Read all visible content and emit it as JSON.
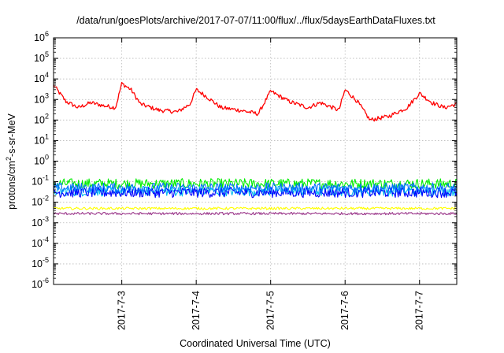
{
  "chart_data": {
    "type": "line",
    "title": "/data/run/goesPlots/archive/2017-07-07/11:00/flux/../flux/5daysEarthDataFluxes.txt",
    "xlabel": "Coordinated Universal Time (UTC)",
    "ylabel": "protons/cm²-s-sr-MeV",
    "ylabel_parts": {
      "base": "protons/cm",
      "sup": "2",
      "rest": "-s-sr-MeV"
    },
    "y_scale": "log",
    "ylim": [
      1e-06,
      1000000.0
    ],
    "y_ticks": [
      {
        "exp": -6,
        "base": "10",
        "sup": "-6"
      },
      {
        "exp": -5,
        "base": "10",
        "sup": "-5"
      },
      {
        "exp": -4,
        "base": "10",
        "sup": "-4"
      },
      {
        "exp": -3,
        "base": "10",
        "sup": "-3"
      },
      {
        "exp": -2,
        "base": "10",
        "sup": "-2"
      },
      {
        "exp": -1,
        "base": "10",
        "sup": "-1"
      },
      {
        "exp": 0,
        "base": "10",
        "sup": "0"
      },
      {
        "exp": 1,
        "base": "10",
        "sup": "1"
      },
      {
        "exp": 2,
        "base": "10",
        "sup": "2"
      },
      {
        "exp": 3,
        "base": "10",
        "sup": "3"
      },
      {
        "exp": 4,
        "base": "10",
        "sup": "4"
      },
      {
        "exp": 5,
        "base": "10",
        "sup": "5"
      },
      {
        "exp": 6,
        "base": "10",
        "sup": "6"
      }
    ],
    "x_start": "2017-07-02 02:00",
    "x_end": "2017-07-07 12:00",
    "x_ticks": [
      {
        "label": "2017-7-3",
        "date": "2017-07-03 00:00"
      },
      {
        "label": "2017-7-4",
        "date": "2017-07-04 00:00"
      },
      {
        "label": "2017-7-5",
        "date": "2017-07-05 00:00"
      },
      {
        "label": "2017-7-6",
        "date": "2017-07-06 00:00"
      },
      {
        "label": "2017-7-7",
        "date": "2017-07-07 00:00"
      }
    ],
    "grid": true,
    "series": [
      {
        "color": "#ff0000",
        "noise": 0.1,
        "points": [
          [
            "2017-07-02 02:00",
            5000
          ],
          [
            "2017-07-02 06:00",
            800
          ],
          [
            "2017-07-02 10:00",
            400
          ],
          [
            "2017-07-02 14:00",
            700
          ],
          [
            "2017-07-02 18:00",
            500
          ],
          [
            "2017-07-02 22:00",
            400
          ],
          [
            "2017-07-03 00:00",
            6000
          ],
          [
            "2017-07-03 03:00",
            3000
          ],
          [
            "2017-07-03 06:00",
            600
          ],
          [
            "2017-07-03 12:00",
            300
          ],
          [
            "2017-07-03 18:00",
            250
          ],
          [
            "2017-07-03 22:00",
            600
          ],
          [
            "2017-07-04 00:00",
            3000
          ],
          [
            "2017-07-04 03:00",
            1500
          ],
          [
            "2017-07-04 08:00",
            400
          ],
          [
            "2017-07-04 14:00",
            300
          ],
          [
            "2017-07-04 20:00",
            200
          ],
          [
            "2017-07-05 00:00",
            2500
          ],
          [
            "2017-07-05 06:00",
            800
          ],
          [
            "2017-07-05 12:00",
            400
          ],
          [
            "2017-07-05 16:00",
            700
          ],
          [
            "2017-07-05 22:00",
            300
          ],
          [
            "2017-07-06 00:00",
            3000
          ],
          [
            "2017-07-06 04:00",
            800
          ],
          [
            "2017-07-06 08:00",
            100
          ],
          [
            "2017-07-06 14:00",
            150
          ],
          [
            "2017-07-06 20:00",
            400
          ],
          [
            "2017-07-07 00:00",
            2000
          ],
          [
            "2017-07-07 04:00",
            700
          ],
          [
            "2017-07-07 08:00",
            400
          ],
          [
            "2017-07-07 12:00",
            600
          ]
        ]
      },
      {
        "color": "#00ee00",
        "level": 0.08,
        "noise": 0.25
      },
      {
        "color": "#00bbee",
        "level": 0.035,
        "noise": 0.25
      },
      {
        "color": "#0000ff",
        "level": 0.03,
        "noise": 0.25
      },
      {
        "color": "#0070ff",
        "level": 0.05,
        "noise": 0.25
      },
      {
        "color": "#ffff00",
        "level": 0.005,
        "noise": 0.06
      },
      {
        "color": "#993388",
        "level": 0.0028,
        "noise": 0.06
      }
    ]
  }
}
